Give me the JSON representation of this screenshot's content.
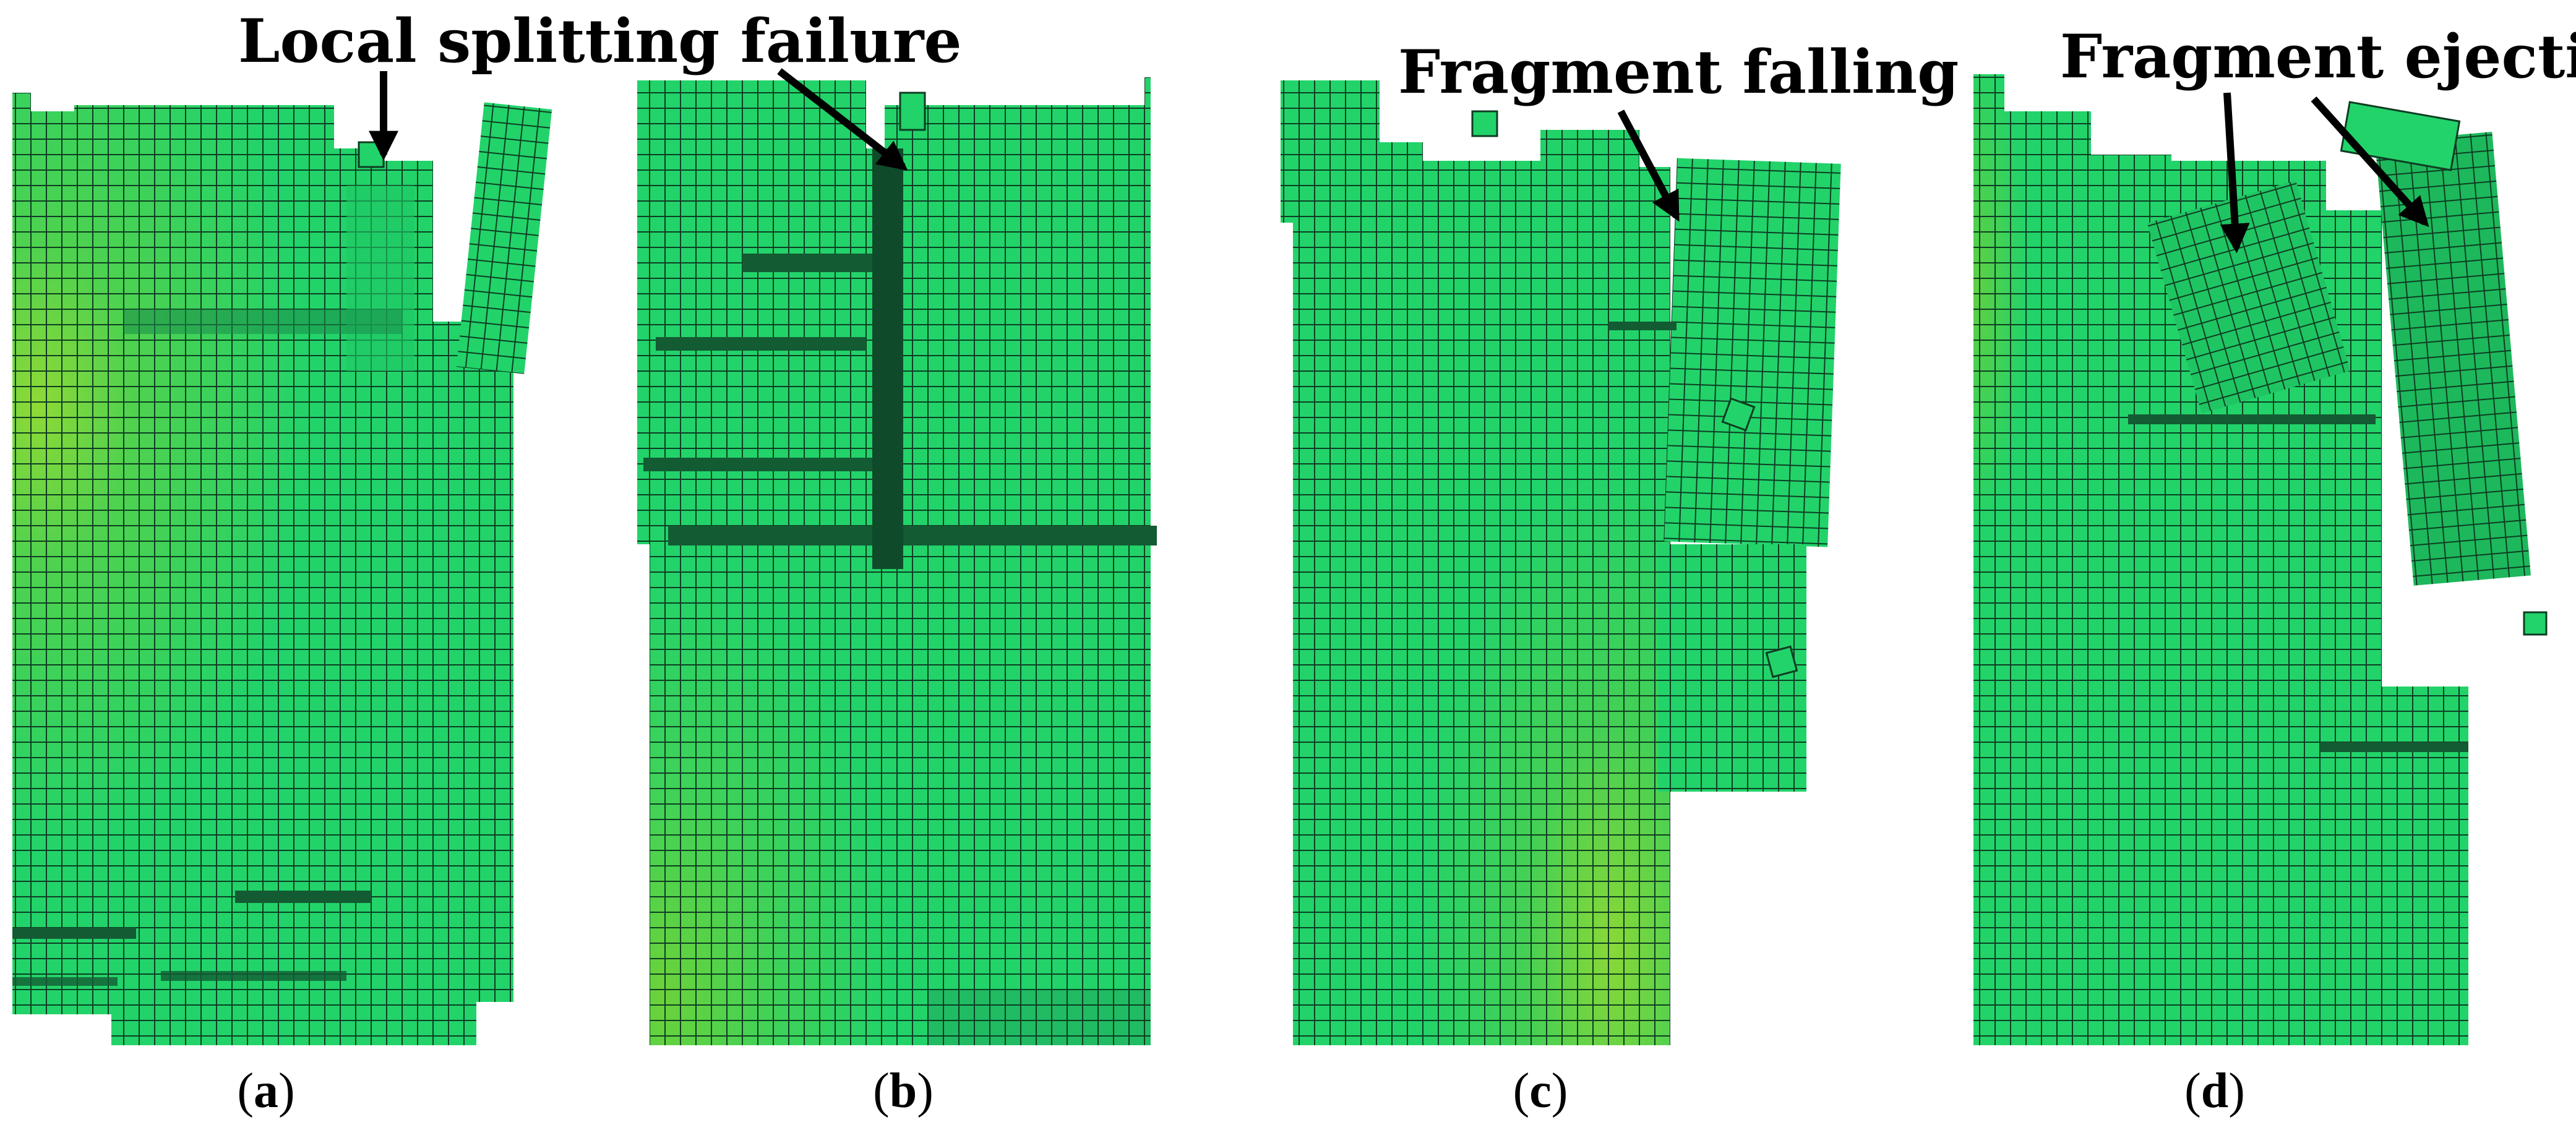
{
  "panels": [
    {
      "caption_open": "(",
      "caption_letter": "a",
      "caption_close": ")"
    },
    {
      "caption_open": "(",
      "caption_letter": "b",
      "caption_close": ")"
    },
    {
      "caption_open": "(",
      "caption_letter": "c",
      "caption_close": ")"
    },
    {
      "caption_open": "(",
      "caption_letter": "d",
      "caption_close": ")"
    }
  ],
  "annotations": {
    "local_splitting": "Local splitting failure",
    "fragment_falling": "Fragment falling",
    "fragment_ejecting": "Fragment ejecting"
  },
  "colors": {
    "element_fill": "#22d36a",
    "element_dark": "#1aa655",
    "mesh_line": "#0e3d22",
    "stress_yellow_green": "#78d63a",
    "stress_mid_green": "#3fd25a",
    "arrow": "#000000"
  }
}
